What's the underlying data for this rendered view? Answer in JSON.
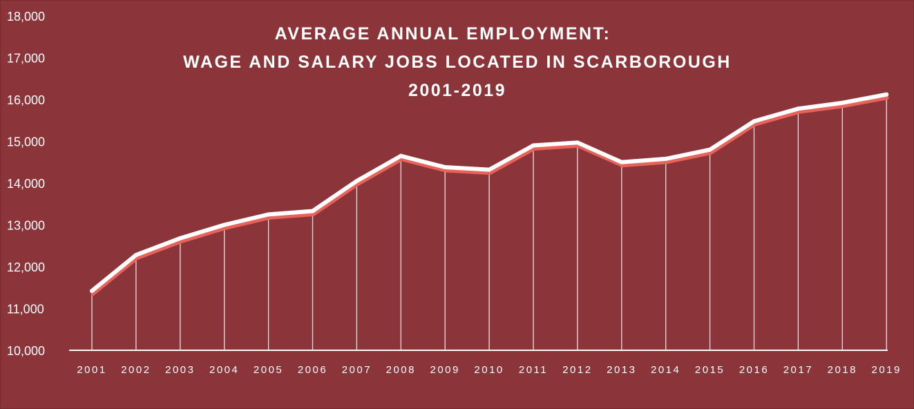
{
  "chart_data": {
    "type": "line",
    "title": [
      "AVERAGE ANNUAL EMPLOYMENT:",
      "WAGE AND SALARY JOBS LOCATED IN SCARBOROUGH",
      "2001-2019"
    ],
    "xlabel": "",
    "ylabel": "",
    "categories": [
      "2001",
      "2002",
      "2003",
      "2004",
      "2005",
      "2006",
      "2007",
      "2008",
      "2009",
      "2010",
      "2011",
      "2012",
      "2013",
      "2014",
      "2015",
      "2016",
      "2017",
      "2018",
      "2019"
    ],
    "series": [
      {
        "name": "",
        "values": [
          11420,
          12280,
          12680,
          13000,
          13250,
          13330,
          14050,
          14650,
          14380,
          14320,
          14900,
          14970,
          14500,
          14580,
          14800,
          15480,
          15780,
          15920,
          16120
        ]
      }
    ],
    "ylim": [
      10000,
      18000
    ],
    "yticks": [
      "10,000",
      "11,000",
      "12,000",
      "13,000",
      "14,000",
      "15,000",
      "16,000",
      "17,000",
      "18,000"
    ],
    "grid": false,
    "drop_lines": true,
    "legend": "none",
    "colors": {
      "background": "#8b3439",
      "line": "#ffffff",
      "line_shadow": "#e8625a",
      "drop_line": "#ffffff",
      "text": "#ffffff"
    }
  }
}
